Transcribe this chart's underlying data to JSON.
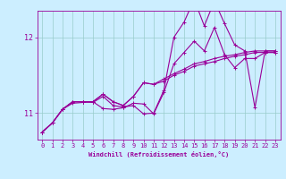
{
  "xlabel": "Windchill (Refroidissement éolien,°C)",
  "bg_color": "#cceeff",
  "line_color": "#990099",
  "grid_color": "#99cccc",
  "xlim": [
    -0.5,
    23.5
  ],
  "ylim": [
    10.65,
    12.35
  ],
  "xticks": [
    0,
    1,
    2,
    3,
    4,
    5,
    6,
    7,
    8,
    9,
    10,
    11,
    12,
    13,
    14,
    15,
    16,
    17,
    18,
    19,
    20,
    21,
    22,
    23
  ],
  "yticks": [
    11,
    12
  ],
  "series": [
    [
      10.75,
      10.87,
      11.05,
      11.13,
      11.14,
      11.15,
      11.06,
      11.05,
      11.07,
      11.13,
      11.12,
      10.99,
      11.27,
      11.65,
      11.8,
      11.95,
      11.82,
      12.13,
      11.77,
      11.6,
      11.72,
      11.72,
      11.8,
      11.8
    ],
    [
      10.75,
      10.87,
      11.05,
      11.15,
      11.15,
      11.15,
      11.25,
      11.15,
      11.1,
      11.22,
      11.4,
      11.38,
      11.42,
      11.5,
      11.55,
      11.62,
      11.65,
      11.68,
      11.72,
      11.75,
      11.77,
      11.8,
      11.8,
      11.8
    ],
    [
      10.75,
      10.87,
      11.05,
      11.15,
      11.15,
      11.15,
      11.25,
      11.15,
      11.1,
      11.22,
      11.4,
      11.38,
      11.45,
      11.52,
      11.58,
      11.65,
      11.68,
      11.72,
      11.75,
      11.77,
      11.8,
      11.82,
      11.82,
      11.82
    ],
    [
      10.75,
      10.87,
      11.05,
      11.15,
      11.15,
      11.14,
      11.22,
      11.1,
      11.08,
      11.1,
      10.99,
      11.0,
      11.3,
      12.0,
      12.2,
      12.5,
      12.15,
      12.48,
      12.18,
      11.9,
      11.82,
      11.07,
      11.82,
      11.82
    ]
  ],
  "marker": "+",
  "markersize": 3,
  "linewidth": 0.8,
  "tick_fontsize": 5,
  "xlabel_fontsize": 5,
  "ylabel_fontsize": 6
}
